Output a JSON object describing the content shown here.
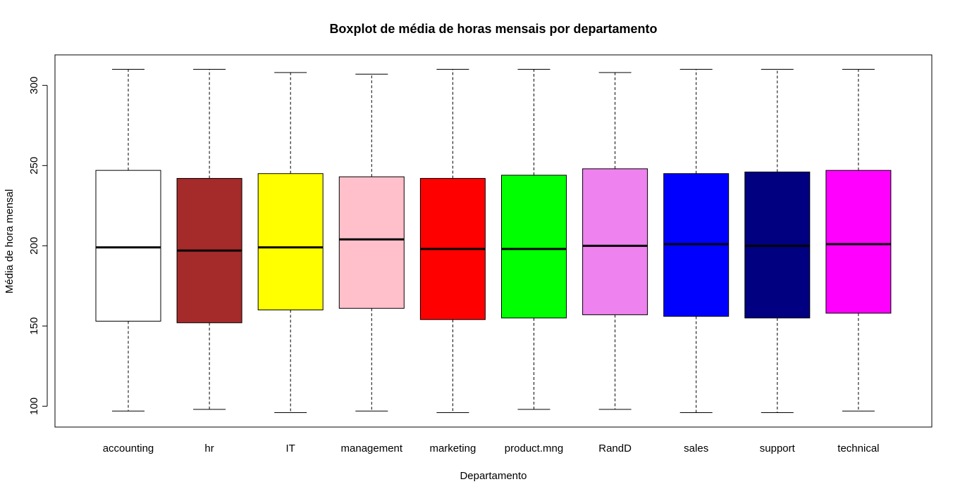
{
  "chart_data": {
    "type": "boxplot",
    "title": "Boxplot de média de horas mensais por departamento",
    "xlabel": "Departamento",
    "ylabel": "Média de hora mensal",
    "ylim": [
      87,
      319
    ],
    "yticks": [
      100,
      150,
      200,
      250,
      300
    ],
    "categories": [
      "accounting",
      "hr",
      "IT",
      "management",
      "marketing",
      "product.mng",
      "RandD",
      "sales",
      "support",
      "technical"
    ],
    "boxes": [
      {
        "category": "accounting",
        "color": "#FFFFFF",
        "min": 97,
        "q1": 153,
        "median": 199,
        "q3": 247,
        "max": 310
      },
      {
        "category": "hr",
        "color": "#A52A2A",
        "min": 98,
        "q1": 152,
        "median": 197,
        "q3": 242,
        "max": 310
      },
      {
        "category": "IT",
        "color": "#FFFF00",
        "min": 96,
        "q1": 160,
        "median": 199,
        "q3": 245,
        "max": 308
      },
      {
        "category": "management",
        "color": "#FFC0CB",
        "min": 97,
        "q1": 161,
        "median": 204,
        "q3": 243,
        "max": 307
      },
      {
        "category": "marketing",
        "color": "#FF0000",
        "min": 96,
        "q1": 154,
        "median": 198,
        "q3": 242,
        "max": 310
      },
      {
        "category": "product.mng",
        "color": "#00FF00",
        "min": 98,
        "q1": 155,
        "median": 198,
        "q3": 244,
        "max": 310
      },
      {
        "category": "RandD",
        "color": "#EE82EE",
        "min": 98,
        "q1": 157,
        "median": 200,
        "q3": 248,
        "max": 308
      },
      {
        "category": "sales",
        "color": "#0000FF",
        "min": 96,
        "q1": 156,
        "median": 201,
        "q3": 245,
        "max": 310
      },
      {
        "category": "support",
        "color": "#000080",
        "min": 96,
        "q1": 155,
        "median": 200,
        "q3": 246,
        "max": 310
      },
      {
        "category": "technical",
        "color": "#FF00FF",
        "min": 97,
        "q1": 158,
        "median": 201,
        "q3": 247,
        "max": 310
      }
    ],
    "grid": false,
    "legend": "none"
  }
}
